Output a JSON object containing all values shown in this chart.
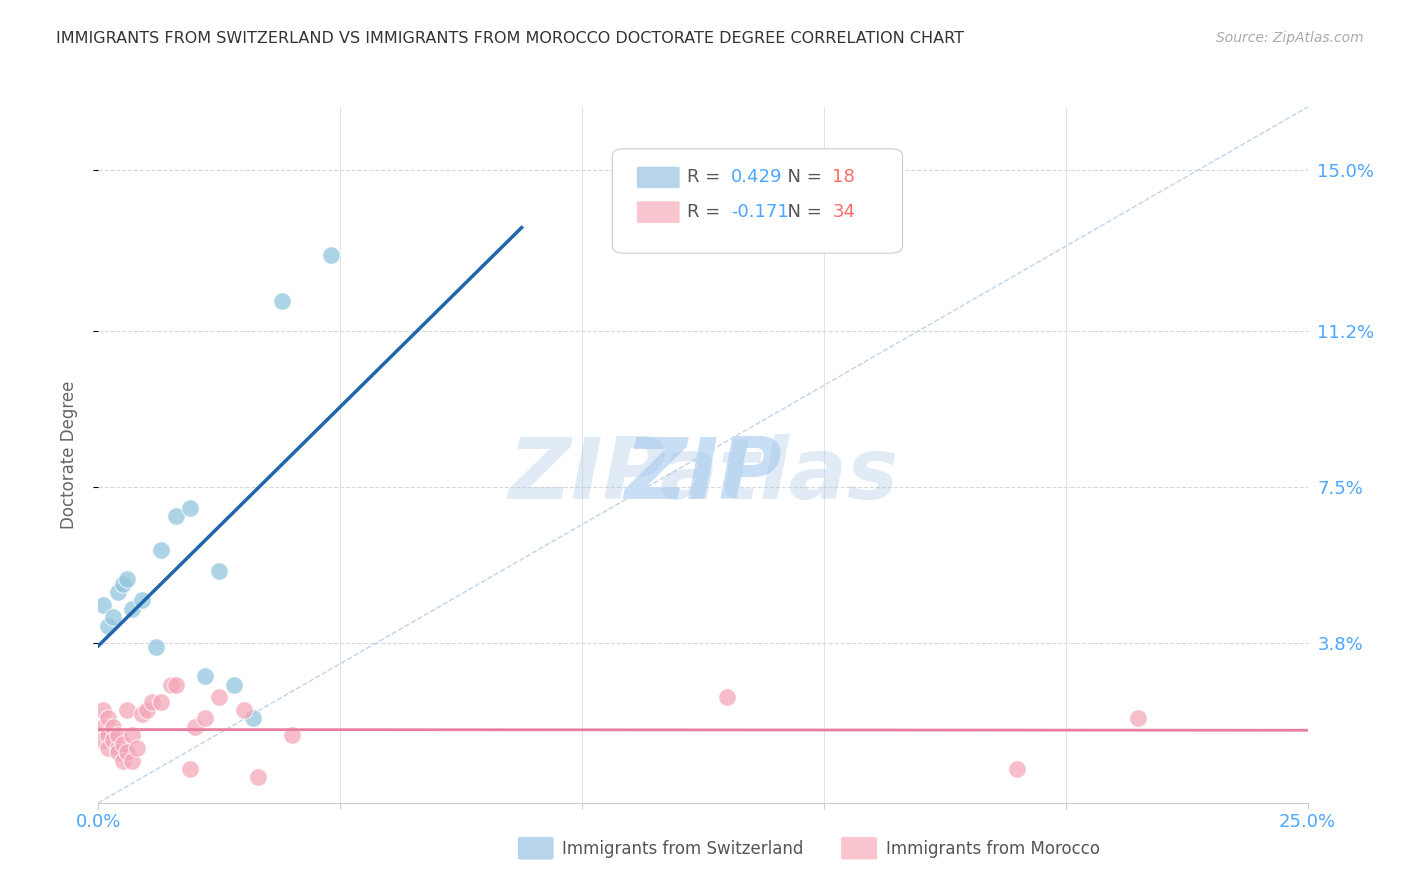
{
  "title": "IMMIGRANTS FROM SWITZERLAND VS IMMIGRANTS FROM MOROCCO DOCTORATE DEGREE CORRELATION CHART",
  "source": "Source: ZipAtlas.com",
  "ylabel": "Doctorate Degree",
  "ytick_labels": [
    "15.0%",
    "11.2%",
    "7.5%",
    "3.8%"
  ],
  "ytick_vals": [
    0.15,
    0.112,
    0.075,
    0.038
  ],
  "xlim": [
    0.0,
    0.25
  ],
  "ylim": [
    0.0,
    0.165
  ],
  "switzerland_R": 0.429,
  "switzerland_N": 18,
  "morocco_R": -0.171,
  "morocco_N": 34,
  "switzerland_color": "#92c5de",
  "morocco_color": "#f4a7b9",
  "regression_sw_color": "#2166ac",
  "regression_mo_color": "#e87fa0",
  "diagonal_color": "#b8cfe8",
  "legend_sw_color": "#b8d4ea",
  "legend_mo_color": "#f9c6d0",
  "R_color": "#4da6ff",
  "N_color": "#ff6b6b",
  "background_color": "#ffffff",
  "grid_color": "#d8d8d8",
  "title_color": "#333333",
  "axis_tick_color": "#4da6ff",
  "watermark_zip_color": "#c8def5",
  "watermark_atlas_color": "#a8c8e8",
  "switzerland_x": [
    0.001,
    0.002,
    0.003,
    0.004,
    0.005,
    0.006,
    0.007,
    0.009,
    0.012,
    0.013,
    0.016,
    0.019,
    0.022,
    0.025,
    0.028,
    0.032,
    0.038,
    0.048
  ],
  "switzerland_y": [
    0.047,
    0.042,
    0.044,
    0.05,
    0.052,
    0.053,
    0.046,
    0.048,
    0.037,
    0.06,
    0.068,
    0.07,
    0.03,
    0.055,
    0.028,
    0.02,
    0.119,
    0.13
  ],
  "morocco_x": [
    0.001,
    0.001,
    0.001,
    0.002,
    0.002,
    0.002,
    0.003,
    0.003,
    0.004,
    0.004,
    0.004,
    0.005,
    0.005,
    0.006,
    0.006,
    0.007,
    0.007,
    0.008,
    0.009,
    0.01,
    0.011,
    0.013,
    0.015,
    0.016,
    0.019,
    0.02,
    0.022,
    0.025,
    0.03,
    0.033,
    0.04,
    0.13,
    0.19,
    0.215
  ],
  "morocco_y": [
    0.022,
    0.018,
    0.015,
    0.02,
    0.016,
    0.013,
    0.018,
    0.015,
    0.013,
    0.016,
    0.012,
    0.01,
    0.014,
    0.012,
    0.022,
    0.01,
    0.016,
    0.013,
    0.021,
    0.022,
    0.024,
    0.024,
    0.028,
    0.028,
    0.008,
    0.018,
    0.02,
    0.025,
    0.022,
    0.006,
    0.016,
    0.025,
    0.008,
    0.02
  ]
}
